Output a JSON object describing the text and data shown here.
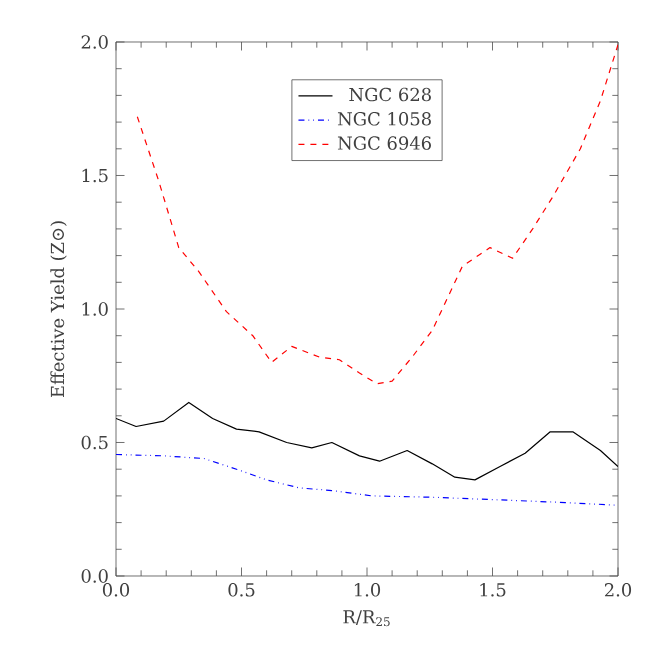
{
  "chart_data": {
    "type": "line",
    "xlabel": "R/R$_{25}$",
    "ylabel": "Effective Yield (Z⊙)",
    "xlim": [
      0,
      2
    ],
    "ylim": [
      0,
      2
    ],
    "xticks": [
      {
        "value": 0,
        "label": "0.0"
      },
      {
        "value": 0.5,
        "label": "0.5"
      },
      {
        "value": 1,
        "label": "1.0"
      },
      {
        "value": 1.5,
        "label": "1.5"
      },
      {
        "value": 2,
        "label": "2.0"
      }
    ],
    "yticks": [
      {
        "value": 0,
        "label": "0.0"
      },
      {
        "value": 0.5,
        "label": "0.5"
      },
      {
        "value": 1,
        "label": "1.0"
      },
      {
        "value": 1.5,
        "label": "1.5"
      },
      {
        "value": 2,
        "label": "2.0"
      }
    ],
    "grid": false,
    "legend": "top",
    "marker": "none",
    "series": [
      {
        "name": "NGC 628",
        "color": "#000000",
        "line_style": "solid",
        "x": [
          0,
          0.08,
          0.19,
          0.29,
          0.385,
          0.48,
          0.57,
          0.68,
          0.78,
          0.86,
          0.97,
          1.05,
          1.16,
          1.26,
          1.35,
          1.43,
          1.53,
          1.63,
          1.73,
          1.82,
          1.93,
          2.0
        ],
        "values": [
          0.59,
          0.56,
          0.58,
          0.65,
          0.59,
          0.55,
          0.54,
          0.5,
          0.48,
          0.5,
          0.45,
          0.43,
          0.47,
          0.42,
          0.37,
          0.36,
          0.41,
          0.46,
          0.54,
          0.54,
          0.47,
          0.41
        ]
      },
      {
        "name": "NGC 1058",
        "color": "#0000ff",
        "line_style": "dashdotdotted",
        "x": [
          0,
          0.19,
          0.35,
          0.48,
          0.6,
          0.73,
          0.86,
          1.02,
          1.26,
          1.53,
          1.79,
          2.0
        ],
        "values": [
          0.455,
          0.45,
          0.44,
          0.4,
          0.36,
          0.33,
          0.32,
          0.3,
          0.295,
          0.285,
          0.275,
          0.265
        ]
      },
      {
        "name": "NGC 6946",
        "color": "#ff0000",
        "line_style": "dashed",
        "x": [
          0.085,
          0.17,
          0.25,
          0.33,
          0.44,
          0.545,
          0.62,
          0.7,
          0.81,
          0.89,
          0.97,
          1.04,
          1.1,
          1.18,
          1.26,
          1.38,
          1.49,
          1.58,
          1.66,
          1.74,
          1.85,
          1.93,
          2.0
        ],
        "values": [
          1.72,
          1.48,
          1.23,
          1.14,
          0.99,
          0.9,
          0.8,
          0.86,
          0.82,
          0.81,
          0.76,
          0.72,
          0.73,
          0.82,
          0.92,
          1.16,
          1.23,
          1.19,
          1.3,
          1.42,
          1.6,
          1.78,
          1.99
        ]
      }
    ]
  }
}
